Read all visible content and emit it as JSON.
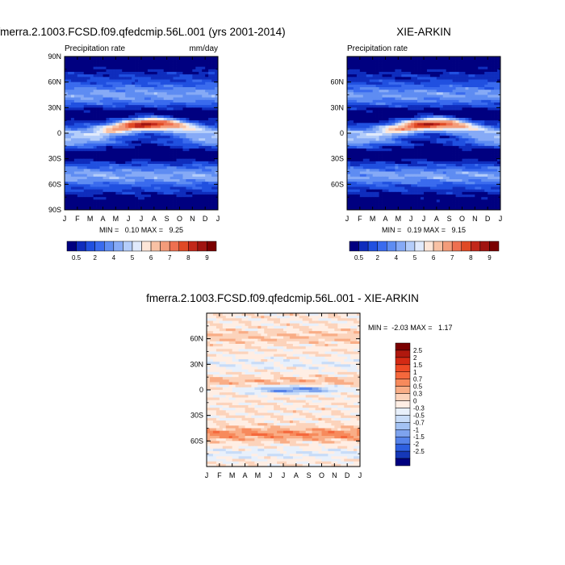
{
  "chart_data": [
    {
      "type": "heatmap",
      "id": "p1",
      "title": "fmerra.2.1003.FCSD.f09.qfedcmip.56L.001 (yrs 2001-2014)",
      "subtitle_left": "Precipitation rate",
      "subtitle_right": "mm/day",
      "stats": "MIN =   0.10 MAX =   9.25",
      "x_tick_labels": [
        "J",
        "F",
        "M",
        "A",
        "M",
        "J",
        "J",
        "A",
        "S",
        "O",
        "N",
        "D",
        "J"
      ],
      "y_tick_labels": [
        "90N",
        "60N",
        "30N",
        "0",
        "30S",
        "60S",
        "90S"
      ],
      "y_ticks": [
        90,
        60,
        30,
        0,
        -30,
        -60,
        -90
      ],
      "ylim": [
        -90,
        90
      ],
      "colorbar": {
        "labels": [
          "0.5",
          "2",
          "4",
          "5",
          "6",
          "7",
          "8",
          "9"
        ],
        "colors": [
          "#000080",
          "#0f2dbd",
          "#2050e0",
          "#3a6bee",
          "#5e8cf2",
          "#86aaf6",
          "#b4cdfa",
          "#e0eafc",
          "#fde6d8",
          "#f8c1a4",
          "#f39c7a",
          "#ee7050",
          "#e04a25",
          "#c2281a",
          "#a01410",
          "#7a0000"
        ]
      }
    },
    {
      "type": "heatmap",
      "id": "p2",
      "title": "XIE-ARKIN",
      "subtitle_left": "Precipitation rate",
      "subtitle_right": "",
      "stats": "MIN =   0.19 MAX =   9.15",
      "x_tick_labels": [
        "J",
        "F",
        "M",
        "A",
        "M",
        "J",
        "J",
        "A",
        "S",
        "O",
        "N",
        "D",
        "J"
      ],
      "y_tick_labels": [
        "60N",
        "30N",
        "0",
        "30S",
        "60S"
      ],
      "y_ticks": [
        60,
        30,
        0,
        -30,
        -60
      ],
      "ylim": [
        -90,
        90
      ],
      "colorbar": {
        "labels": [
          "0.5",
          "2",
          "4",
          "5",
          "6",
          "7",
          "8",
          "9"
        ],
        "colors": [
          "#000080",
          "#0f2dbd",
          "#2050e0",
          "#3a6bee",
          "#5e8cf2",
          "#86aaf6",
          "#b4cdfa",
          "#e0eafc",
          "#fde6d8",
          "#f8c1a4",
          "#f39c7a",
          "#ee7050",
          "#e04a25",
          "#c2281a",
          "#a01410",
          "#7a0000"
        ]
      }
    },
    {
      "type": "heatmap",
      "id": "p3",
      "title": "fmerra.2.1003.FCSD.f09.qfedcmip.56L.001 - XIE-ARKIN",
      "stats": "MIN =  -2.03 MAX =   1.17",
      "x_tick_labels": [
        "J",
        "F",
        "M",
        "A",
        "M",
        "J",
        "J",
        "A",
        "S",
        "O",
        "N",
        "D",
        "J"
      ],
      "y_tick_labels": [
        "60N",
        "30N",
        "0",
        "30S",
        "60S"
      ],
      "y_ticks": [
        60,
        30,
        0,
        -30,
        -60
      ],
      "ylim": [
        -90,
        90
      ],
      "colorbar": {
        "labels": [
          "2.5",
          "2",
          "1.5",
          "1",
          "0.7",
          "0.5",
          "0.3",
          "0",
          "-0.3",
          "-0.5",
          "-0.7",
          "-1",
          "-1.5",
          "-2",
          "-2.5"
        ],
        "colors": [
          "#7a0000",
          "#b0180e",
          "#d42a14",
          "#ee4a25",
          "#f5683c",
          "#f78a5c",
          "#f9ad86",
          "#fcd3bb",
          "#ffeee4",
          "#e8f0fb",
          "#c8dcf8",
          "#a3c2f3",
          "#7ea3ee",
          "#5683ea",
          "#2d5fe0",
          "#1538b8",
          "#000080"
        ]
      }
    }
  ]
}
